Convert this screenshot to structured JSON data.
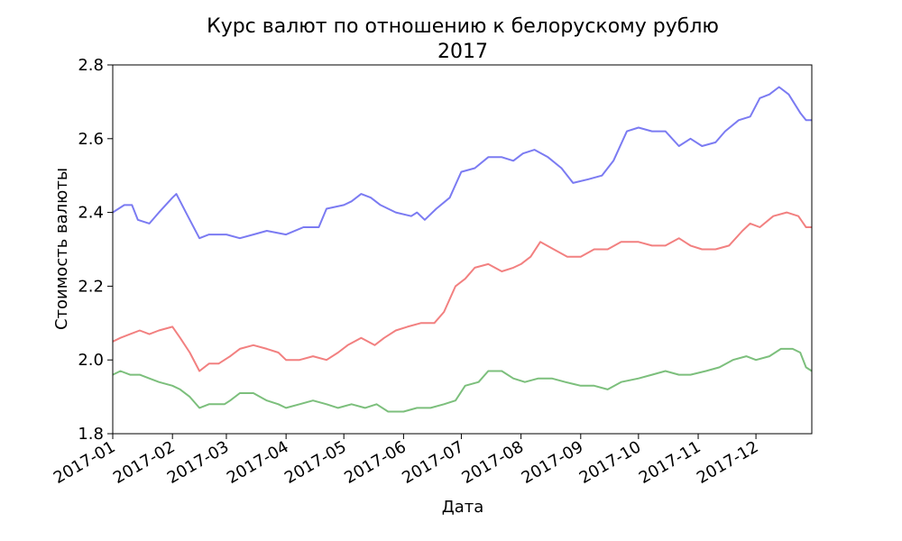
{
  "chart_data": {
    "type": "line",
    "title": "Курс валют по отношению к белорускому рублю",
    "subtitle": "2017",
    "xlabel": "Дата",
    "ylabel": "Стоимость валюты",
    "xlim": [
      "2017-01-01",
      "2017-12-30"
    ],
    "ylim": [
      1.8,
      2.8
    ],
    "yticks": [
      1.8,
      2.0,
      2.2,
      2.4,
      2.6,
      2.8
    ],
    "ytick_labels": [
      "1.8",
      "2.0",
      "2.2",
      "2.4",
      "2.6",
      "2.8"
    ],
    "xticks": [
      "2017-01-01",
      "2017-02-01",
      "2017-03-01",
      "2017-04-01",
      "2017-05-01",
      "2017-06-01",
      "2017-07-01",
      "2017-08-01",
      "2017-09-01",
      "2017-10-01",
      "2017-11-01",
      "2017-12-01"
    ],
    "xtick_labels": [
      "2017-01",
      "2017-02",
      "2017-03",
      "2017-04",
      "2017-05",
      "2017-06",
      "2017-07",
      "2017-08",
      "2017-09",
      "2017-10",
      "2017-11",
      "2017-12"
    ],
    "grid": false,
    "series": [
      {
        "color": "#7b7bf2",
        "x": [
          "2017-01-01",
          "2017-01-07",
          "2017-01-11",
          "2017-01-14",
          "2017-01-20",
          "2017-01-25",
          "2017-02-01",
          "2017-02-03",
          "2017-02-08",
          "2017-02-10",
          "2017-02-15",
          "2017-02-20",
          "2017-02-25",
          "2017-03-01",
          "2017-03-08",
          "2017-03-15",
          "2017-03-22",
          "2017-04-01",
          "2017-04-10",
          "2017-04-18",
          "2017-04-22",
          "2017-05-01",
          "2017-05-05",
          "2017-05-10",
          "2017-05-15",
          "2017-05-20",
          "2017-05-28",
          "2017-06-05",
          "2017-06-08",
          "2017-06-12",
          "2017-06-18",
          "2017-06-25",
          "2017-07-01",
          "2017-07-08",
          "2017-07-15",
          "2017-07-22",
          "2017-07-28",
          "2017-08-02",
          "2017-08-08",
          "2017-08-15",
          "2017-08-22",
          "2017-08-28",
          "2017-09-05",
          "2017-09-12",
          "2017-09-18",
          "2017-09-25",
          "2017-10-01",
          "2017-10-08",
          "2017-10-15",
          "2017-10-22",
          "2017-10-28",
          "2017-11-03",
          "2017-11-10",
          "2017-11-15",
          "2017-11-22",
          "2017-11-28",
          "2017-12-03",
          "2017-12-08",
          "2017-12-13",
          "2017-12-18",
          "2017-12-24",
          "2017-12-27",
          "2017-12-30"
        ],
        "values": [
          2.4,
          2.42,
          2.42,
          2.38,
          2.37,
          2.4,
          2.44,
          2.45,
          2.4,
          2.38,
          2.33,
          2.34,
          2.34,
          2.34,
          2.33,
          2.34,
          2.35,
          2.34,
          2.36,
          2.36,
          2.41,
          2.42,
          2.43,
          2.45,
          2.44,
          2.42,
          2.4,
          2.39,
          2.4,
          2.38,
          2.41,
          2.44,
          2.51,
          2.52,
          2.55,
          2.55,
          2.54,
          2.56,
          2.57,
          2.55,
          2.52,
          2.48,
          2.49,
          2.5,
          2.54,
          2.62,
          2.63,
          2.62,
          2.62,
          2.58,
          2.6,
          2.58,
          2.59,
          2.62,
          2.65,
          2.66,
          2.71,
          2.72,
          2.74,
          2.72,
          2.67,
          2.65,
          2.65
        ]
      },
      {
        "color": "#f28080",
        "x": [
          "2017-01-01",
          "2017-01-05",
          "2017-01-10",
          "2017-01-15",
          "2017-01-20",
          "2017-01-25",
          "2017-02-01",
          "2017-02-05",
          "2017-02-10",
          "2017-02-15",
          "2017-02-20",
          "2017-02-25",
          "2017-03-03",
          "2017-03-08",
          "2017-03-15",
          "2017-03-22",
          "2017-03-28",
          "2017-04-01",
          "2017-04-08",
          "2017-04-15",
          "2017-04-22",
          "2017-04-28",
          "2017-05-03",
          "2017-05-10",
          "2017-05-17",
          "2017-05-22",
          "2017-05-28",
          "2017-06-03",
          "2017-06-10",
          "2017-06-17",
          "2017-06-22",
          "2017-06-28",
          "2017-07-03",
          "2017-07-08",
          "2017-07-15",
          "2017-07-22",
          "2017-07-28",
          "2017-08-01",
          "2017-08-06",
          "2017-08-11",
          "2017-08-18",
          "2017-08-25",
          "2017-09-01",
          "2017-09-08",
          "2017-09-15",
          "2017-09-22",
          "2017-10-01",
          "2017-10-08",
          "2017-10-15",
          "2017-10-22",
          "2017-10-28",
          "2017-11-03",
          "2017-11-10",
          "2017-11-17",
          "2017-11-24",
          "2017-11-28",
          "2017-12-03",
          "2017-12-10",
          "2017-12-17",
          "2017-12-23",
          "2017-12-27",
          "2017-12-30"
        ],
        "values": [
          2.05,
          2.06,
          2.07,
          2.08,
          2.07,
          2.08,
          2.09,
          2.06,
          2.02,
          1.97,
          1.99,
          1.99,
          2.01,
          2.03,
          2.04,
          2.03,
          2.02,
          2.0,
          2.0,
          2.01,
          2.0,
          2.02,
          2.04,
          2.06,
          2.04,
          2.06,
          2.08,
          2.09,
          2.1,
          2.1,
          2.13,
          2.2,
          2.22,
          2.25,
          2.26,
          2.24,
          2.25,
          2.26,
          2.28,
          2.32,
          2.3,
          2.28,
          2.28,
          2.3,
          2.3,
          2.32,
          2.32,
          2.31,
          2.31,
          2.33,
          2.31,
          2.3,
          2.3,
          2.31,
          2.35,
          2.37,
          2.36,
          2.39,
          2.4,
          2.39,
          2.36,
          2.36
        ]
      },
      {
        "color": "#7cbf7c",
        "x": [
          "2017-01-01",
          "2017-01-05",
          "2017-01-10",
          "2017-01-15",
          "2017-01-20",
          "2017-01-25",
          "2017-02-01",
          "2017-02-05",
          "2017-02-10",
          "2017-02-15",
          "2017-02-20",
          "2017-02-28",
          "2017-03-03",
          "2017-03-08",
          "2017-03-15",
          "2017-03-22",
          "2017-03-28",
          "2017-04-01",
          "2017-04-08",
          "2017-04-15",
          "2017-04-22",
          "2017-04-28",
          "2017-05-05",
          "2017-05-12",
          "2017-05-18",
          "2017-05-24",
          "2017-06-01",
          "2017-06-08",
          "2017-06-15",
          "2017-06-22",
          "2017-06-28",
          "2017-07-03",
          "2017-07-10",
          "2017-07-15",
          "2017-07-22",
          "2017-07-28",
          "2017-08-03",
          "2017-08-10",
          "2017-08-17",
          "2017-08-24",
          "2017-09-01",
          "2017-09-08",
          "2017-09-15",
          "2017-09-22",
          "2017-10-01",
          "2017-10-08",
          "2017-10-15",
          "2017-10-22",
          "2017-10-28",
          "2017-11-05",
          "2017-11-12",
          "2017-11-19",
          "2017-11-26",
          "2017-12-01",
          "2017-12-08",
          "2017-12-14",
          "2017-12-20",
          "2017-12-24",
          "2017-12-27",
          "2017-12-30"
        ],
        "values": [
          1.96,
          1.97,
          1.96,
          1.96,
          1.95,
          1.94,
          1.93,
          1.92,
          1.9,
          1.87,
          1.88,
          1.88,
          1.89,
          1.91,
          1.91,
          1.89,
          1.88,
          1.87,
          1.88,
          1.89,
          1.88,
          1.87,
          1.88,
          1.87,
          1.88,
          1.86,
          1.86,
          1.87,
          1.87,
          1.88,
          1.89,
          1.93,
          1.94,
          1.97,
          1.97,
          1.95,
          1.94,
          1.95,
          1.95,
          1.94,
          1.93,
          1.93,
          1.92,
          1.94,
          1.95,
          1.96,
          1.97,
          1.96,
          1.96,
          1.97,
          1.98,
          2.0,
          2.01,
          2.0,
          2.01,
          2.03,
          2.03,
          2.02,
          1.98,
          1.97
        ]
      }
    ]
  }
}
